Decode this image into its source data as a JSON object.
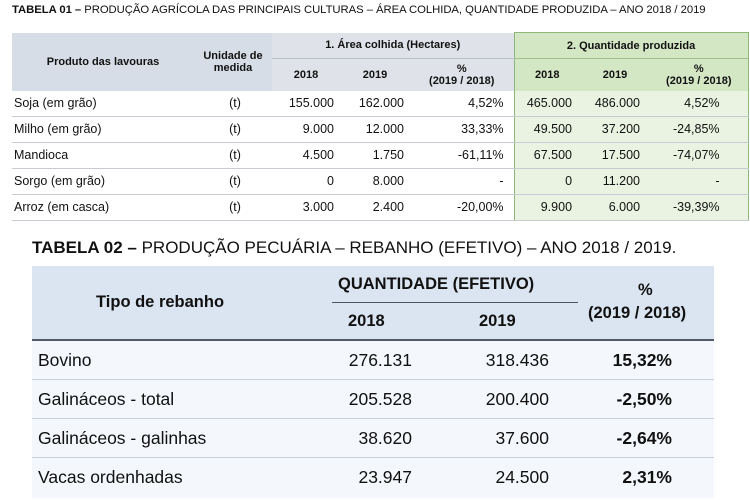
{
  "table1": {
    "title_bold": "TABELA 01 –",
    "title_rest": " PRODUÇÃO AGRÍCOLA DAS PRINCIPAIS CULTURAS – ÁREA COLHIDA, QUANTIDADE PRODUZIDA – ANO 2018 / 2019",
    "col_product": "Produto das lavouras",
    "col_unit": "Unidade de medida",
    "group_area": "1. Área colhida (Hectares)",
    "group_qty": "2. Quantidade produzida",
    "year_2018": "2018",
    "year_2019": "2019",
    "pct_label": "%",
    "pct_period": "(2019 / 2018)",
    "rows": [
      {
        "product": "Soja (em grão)",
        "unit": "(t)",
        "area_2018": "155.000",
        "area_2019": "162.000",
        "area_pct": "4,52%",
        "qty_2018": "465.000",
        "qty_2019": "486.000",
        "qty_pct": "4,52%"
      },
      {
        "product": "Milho (em grão)",
        "unit": "(t)",
        "area_2018": "9.000",
        "area_2019": "12.000",
        "area_pct": "33,33%",
        "qty_2018": "49.500",
        "qty_2019": "37.200",
        "qty_pct": "-24,85%"
      },
      {
        "product": "Mandioca",
        "unit": "(t)",
        "area_2018": "4.500",
        "area_2019": "1.750",
        "area_pct": "-61,11%",
        "qty_2018": "67.500",
        "qty_2019": "17.500",
        "qty_pct": "-74,07%"
      },
      {
        "product": "Sorgo (em grão)",
        "unit": "(t)",
        "area_2018": "0",
        "area_2019": "8.000",
        "area_pct": "-",
        "qty_2018": "0",
        "qty_2019": "11.200",
        "qty_pct": "-"
      },
      {
        "product": "Arroz (em casca)",
        "unit": "(t)",
        "area_2018": "3.000",
        "area_2019": "2.400",
        "area_pct": "-20,00%",
        "qty_2018": "9.900",
        "qty_2019": "6.000",
        "qty_pct": "-39,39%"
      }
    ]
  },
  "table2": {
    "title_bold": "TABELA 02 –",
    "title_rest": " PRODUÇÃO PECUÁRIA – REBANHO (EFETIVO) – ANO 2018 / 2019.",
    "col_type": "Tipo de rebanho",
    "group_qty": "QUANTIDADE (EFETIVO)",
    "year_2018": "2018",
    "year_2019": "2019",
    "pct_label": "%",
    "pct_period": "(2019 / 2018)",
    "rows": [
      {
        "type": "Bovino",
        "v2018": "276.131",
        "v2019": "318.436",
        "pct": "15,32%"
      },
      {
        "type": "Galináceos - total",
        "v2018": "205.528",
        "v2019": "200.400",
        "pct": "-2,50%"
      },
      {
        "type": "Galináceos - galinhas",
        "v2018": "38.620",
        "v2019": "37.600",
        "pct": "-2,64%"
      },
      {
        "type": "Vacas ordenhadas",
        "v2018": "23.947",
        "v2019": "24.500",
        "pct": "2,31%"
      }
    ]
  }
}
